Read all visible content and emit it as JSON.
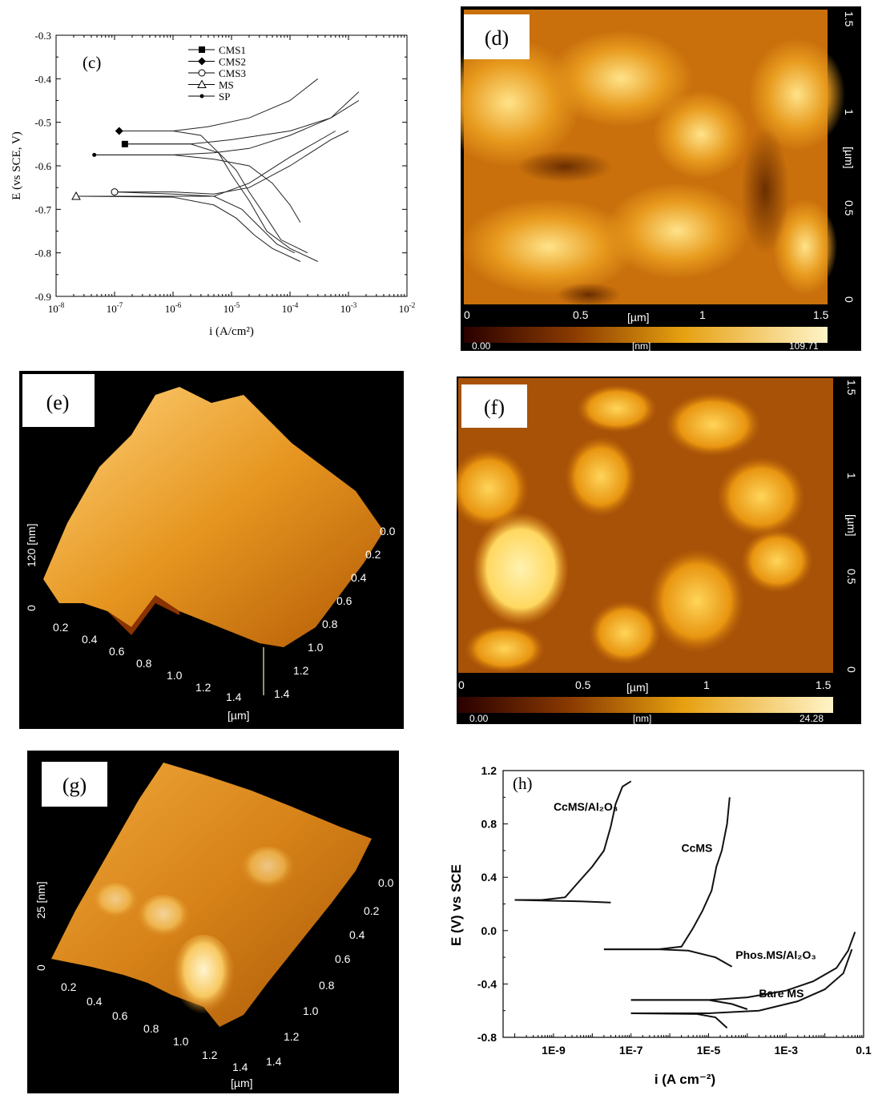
{
  "panels": {
    "c": {
      "tag": "(c)"
    },
    "d": {
      "tag": "(d)",
      "xticks": [
        "0",
        "0.5",
        "1",
        "1.5"
      ],
      "xunit": "[µm]",
      "yticks": [
        "1.5",
        "1",
        "0.5",
        "0"
      ],
      "yunit": "[µm]",
      "scale_min": "0.00",
      "scale_unit": "[nm]",
      "scale_max": "109.71"
    },
    "e": {
      "tag": "(e)",
      "zlabel": "120 [nm]",
      "zzero": "0",
      "xticks": [
        "0.2",
        "0.4",
        "0.6",
        "0.8",
        "1.0",
        "1.2",
        "1.4"
      ],
      "xunit": "[µm]",
      "yticks": [
        "0.0",
        "0.2",
        "0.4",
        "0.6",
        "0.8",
        "1.0",
        "1.2",
        "1.4"
      ]
    },
    "f": {
      "tag": "(f)",
      "xticks": [
        "0",
        "0.5",
        "1",
        "1.5"
      ],
      "xunit": "[µm]",
      "yticks": [
        "1.5",
        "1",
        "0.5",
        "0"
      ],
      "yunit": "[µm]",
      "scale_min": "0.00",
      "scale_unit": "[nm]",
      "scale_max": "24.28"
    },
    "g": {
      "tag": "(g)",
      "zlabel": "25 [nm]",
      "zzero": "0",
      "xticks": [
        "0.2",
        "0.4",
        "0.6",
        "0.8",
        "1.0",
        "1.2",
        "1.4"
      ],
      "xunit": "[µm]",
      "yticks": [
        "0.0",
        "0.2",
        "0.4",
        "0.6",
        "0.8",
        "1.0",
        "1.2",
        "1.4"
      ]
    },
    "h": {
      "tag": "(h)"
    }
  },
  "chart_data": [
    {
      "id": "c",
      "type": "line",
      "xlabel": "i (A/cm²)",
      "ylabel": "E (vs SCE, V)",
      "xscale": "log",
      "xlim": [
        1e-08,
        0.01
      ],
      "ylim": [
        -0.9,
        -0.3
      ],
      "xticks": [
        "10^-8",
        "10^-7",
        "10^-6",
        "10^-5",
        "10^-4",
        "10^-3",
        "10^-2"
      ],
      "yticks": [
        "-0.3",
        "-0.4",
        "-0.5",
        "-0.6",
        "-0.7",
        "-0.8",
        "-0.9"
      ],
      "legend": "top-center",
      "series": [
        {
          "name": "CMS1",
          "marker": "square",
          "ecorr": -0.55,
          "icorr": 1.5e-07,
          "anodic": [
            [
              1.5e-07,
              -0.55
            ],
            [
              2e-06,
              -0.55
            ],
            [
              1e-05,
              -0.54
            ],
            [
              0.0001,
              -0.52
            ],
            [
              0.0005,
              -0.49
            ],
            [
              0.0015,
              -0.43
            ]
          ],
          "cathodic": [
            [
              1.5e-07,
              -0.55
            ],
            [
              2e-06,
              -0.55
            ],
            [
              6e-06,
              -0.57
            ],
            [
              1.2e-05,
              -0.61
            ],
            [
              2e-05,
              -0.66
            ],
            [
              4e-05,
              -0.72
            ],
            [
              7e-05,
              -0.77
            ],
            [
              0.0002,
              -0.8
            ]
          ]
        },
        {
          "name": "CMS2",
          "marker": "diamond",
          "ecorr": -0.52,
          "icorr": 1.2e-07,
          "anodic": [
            [
              1.2e-07,
              -0.52
            ],
            [
              1e-06,
              -0.52
            ],
            [
              4e-06,
              -0.51
            ],
            [
              2e-05,
              -0.49
            ],
            [
              0.0001,
              -0.45
            ],
            [
              0.0003,
              -0.4
            ]
          ],
          "cathodic": [
            [
              1.2e-07,
              -0.52
            ],
            [
              1e-06,
              -0.52
            ],
            [
              3e-06,
              -0.53
            ],
            [
              6e-06,
              -0.57
            ],
            [
              1e-05,
              -0.62
            ],
            [
              2e-05,
              -0.68
            ],
            [
              4e-05,
              -0.75
            ],
            [
              0.0001,
              -0.79
            ],
            [
              0.0003,
              -0.82
            ]
          ]
        },
        {
          "name": "CMS3",
          "marker": "circle",
          "ecorr": -0.66,
          "icorr": 1e-07,
          "anodic": [
            [
              1e-07,
              -0.66
            ],
            [
              1e-06,
              -0.66
            ],
            [
              5e-06,
              -0.665
            ],
            [
              2e-05,
              -0.65
            ],
            [
              0.0001,
              -0.6
            ],
            [
              0.0005,
              -0.54
            ],
            [
              0.001,
              -0.52
            ]
          ],
          "cathodic": [
            [
              1e-07,
              -0.66
            ],
            [
              1e-06,
              -0.665
            ],
            [
              5e-06,
              -0.67
            ],
            [
              1.5e-05,
              -0.7
            ],
            [
              3e-05,
              -0.74
            ],
            [
              6e-05,
              -0.78
            ],
            [
              0.00012,
              -0.8
            ]
          ]
        },
        {
          "name": "MS",
          "marker": "triangle",
          "ecorr": -0.67,
          "icorr": 2.2e-08,
          "anodic": [
            [
              2.2e-08,
              -0.67
            ],
            [
              1e-06,
              -0.67
            ],
            [
              5e-06,
              -0.67
            ],
            [
              2e-05,
              -0.64
            ],
            [
              0.0001,
              -0.58
            ],
            [
              0.0006,
              -0.52
            ]
          ],
          "cathodic": [
            [
              2.2e-08,
              -0.67
            ],
            [
              1e-06,
              -0.672
            ],
            [
              5e-06,
              -0.69
            ],
            [
              1.2e-05,
              -0.72
            ],
            [
              2.5e-05,
              -0.76
            ],
            [
              5e-05,
              -0.79
            ],
            [
              0.00015,
              -0.82
            ]
          ]
        },
        {
          "name": "SP",
          "marker": "dot",
          "ecorr": -0.575,
          "icorr": 4.5e-08,
          "anodic": [
            [
              4.5e-08,
              -0.575
            ],
            [
              1e-06,
              -0.575
            ],
            [
              5e-06,
              -0.57
            ],
            [
              2e-05,
              -0.56
            ],
            [
              0.0001,
              -0.53
            ],
            [
              0.0005,
              -0.49
            ],
            [
              0.0015,
              -0.45
            ]
          ],
          "cathodic": [
            [
              4.5e-08,
              -0.575
            ],
            [
              1e-06,
              -0.575
            ],
            [
              5e-06,
              -0.585
            ],
            [
              2e-05,
              -0.6
            ],
            [
              5e-05,
              -0.64
            ],
            [
              0.0001,
              -0.69
            ],
            [
              0.00015,
              -0.73
            ]
          ]
        }
      ]
    },
    {
      "id": "h",
      "type": "line",
      "xlabel": "i (A cm⁻²)",
      "ylabel": "E (V) vs SCE",
      "xscale": "log",
      "xlim": [
        5e-11,
        0.1
      ],
      "ylim": [
        -0.8,
        1.2
      ],
      "xticks": [
        "1E-9",
        "1E-7",
        "1E-5",
        "1E-3",
        "0.1"
      ],
      "yticks": [
        "1.2",
        "0.8",
        "0.4",
        "0.0",
        "-0.4",
        "-0.8"
      ],
      "series": [
        {
          "name": "CcMS/Al₂O₃",
          "anodic": [
            [
              1e-10,
              0.23
            ],
            [
              5e-10,
              0.23
            ],
            [
              2e-09,
              0.25
            ],
            [
              4e-09,
              0.35
            ],
            [
              1e-08,
              0.48
            ],
            [
              2e-08,
              0.6
            ],
            [
              3e-08,
              0.78
            ],
            [
              4e-08,
              0.95
            ],
            [
              6e-08,
              1.08
            ],
            [
              1e-07,
              1.12
            ]
          ],
          "cathodic": [
            [
              1e-10,
              0.23
            ],
            [
              5e-10,
              0.225
            ],
            [
              5e-09,
              0.22
            ],
            [
              3e-08,
              0.21
            ]
          ]
        },
        {
          "name": "CcMS",
          "anodic": [
            [
              2e-08,
              -0.14
            ],
            [
              5e-07,
              -0.14
            ],
            [
              2e-06,
              -0.12
            ],
            [
              4e-06,
              0.02
            ],
            [
              7e-06,
              0.15
            ],
            [
              1.2e-05,
              0.3
            ],
            [
              1.6e-05,
              0.48
            ],
            [
              2.2e-05,
              0.6
            ],
            [
              3e-05,
              0.8
            ],
            [
              3.5e-05,
              1.0
            ]
          ],
          "cathodic": [
            [
              2e-08,
              -0.14
            ],
            [
              5e-07,
              -0.14
            ],
            [
              3e-06,
              -0.15
            ],
            [
              1.5e-05,
              -0.2
            ],
            [
              4e-05,
              -0.27
            ]
          ]
        },
        {
          "name": "Phos.MS/Al₂O₃",
          "anodic": [
            [
              1e-07,
              -0.52
            ],
            [
              1e-05,
              -0.52
            ],
            [
              0.0001,
              -0.5
            ],
            [
              0.001,
              -0.45
            ],
            [
              0.005,
              -0.38
            ],
            [
              0.02,
              -0.28
            ],
            [
              0.04,
              -0.15
            ],
            [
              0.06,
              -0.01
            ]
          ],
          "cathodic": [
            [
              1e-07,
              -0.52
            ],
            [
              1e-05,
              -0.52
            ],
            [
              4e-05,
              -0.55
            ],
            [
              0.0001,
              -0.59
            ]
          ]
        },
        {
          "name": "Bare MS",
          "anodic": [
            [
              1e-07,
              -0.62
            ],
            [
              1e-05,
              -0.62
            ],
            [
              0.0002,
              -0.6
            ],
            [
              0.002,
              -0.53
            ],
            [
              0.01,
              -0.44
            ],
            [
              0.03,
              -0.32
            ],
            [
              0.05,
              -0.14
            ]
          ],
          "cathodic": [
            [
              1e-07,
              -0.62
            ],
            [
              5e-06,
              -0.625
            ],
            [
              1.5e-05,
              -0.65
            ],
            [
              3e-05,
              -0.73
            ]
          ]
        }
      ]
    }
  ]
}
